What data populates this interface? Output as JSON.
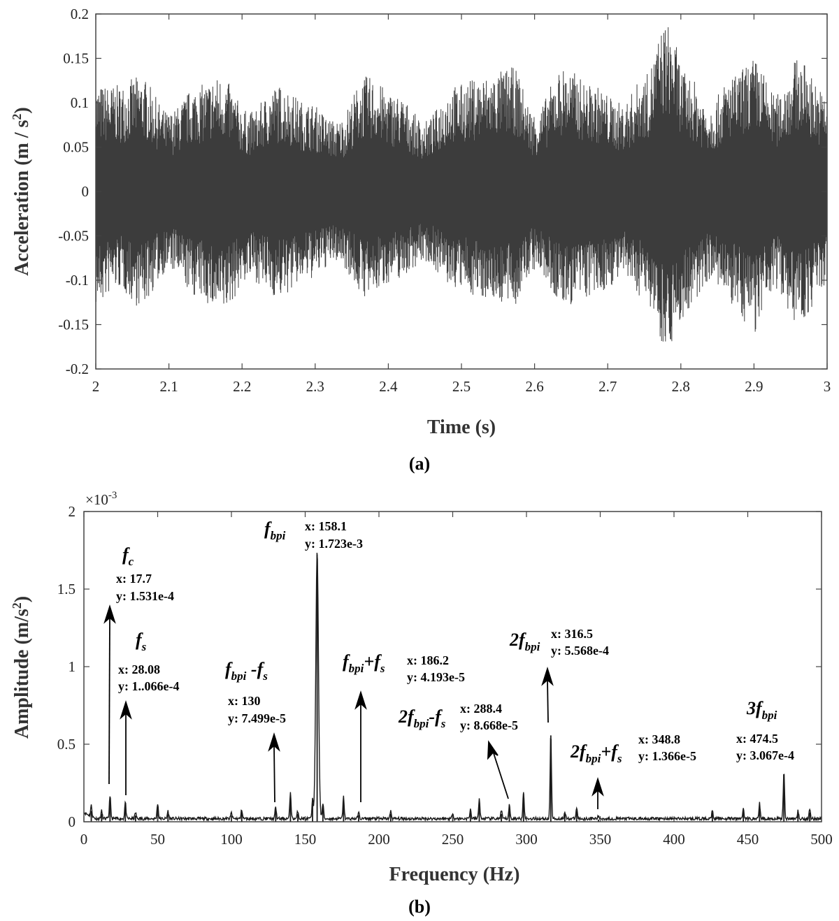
{
  "chart_data": [
    {
      "type": "line",
      "panel_label": "(a)",
      "xlabel": "Time (s)",
      "ylabel": {
        "main": "Acceleration (m / s",
        "sup": "2",
        "tail": ")"
      },
      "xlim": [
        2,
        3
      ],
      "ylim": [
        -0.2,
        0.2
      ],
      "xticks": [
        "2",
        "2.1",
        "2.2",
        "2.3",
        "2.4",
        "2.5",
        "2.6",
        "2.7",
        "2.8",
        "2.9",
        "3"
      ],
      "yticks": [
        "-0.2",
        "-0.15",
        "-0.1",
        "-0.05",
        "0",
        "0.05",
        "0.1",
        "0.15",
        "0.2"
      ],
      "color": "#1a1a1a",
      "series": [
        {
          "envelope_peaks": {
            "t": [
              2.0,
              2.03,
              2.06,
              2.1,
              2.14,
              2.17,
              2.21,
              2.25,
              2.29,
              2.33,
              2.37,
              2.41,
              2.45,
              2.49,
              2.53,
              2.57,
              2.6,
              2.64,
              2.68,
              2.72,
              2.75,
              2.78,
              2.81,
              2.84,
              2.87,
              2.9,
              2.93,
              2.96,
              3.0
            ],
            "upper": [
              0.12,
              0.12,
              0.13,
              0.09,
              0.12,
              0.13,
              0.09,
              0.12,
              0.1,
              0.08,
              0.13,
              0.11,
              0.08,
              0.12,
              0.13,
              0.14,
              0.09,
              0.14,
              0.12,
              0.1,
              0.13,
              0.19,
              0.13,
              0.1,
              0.13,
              0.15,
              0.11,
              0.15,
              0.11
            ],
            "lower": [
              -0.13,
              -0.11,
              -0.13,
              -0.09,
              -0.12,
              -0.14,
              -0.1,
              -0.12,
              -0.1,
              -0.08,
              -0.12,
              -0.1,
              -0.08,
              -0.11,
              -0.12,
              -0.13,
              -0.09,
              -0.13,
              -0.12,
              -0.1,
              -0.12,
              -0.175,
              -0.14,
              -0.1,
              -0.13,
              -0.16,
              -0.11,
              -0.15,
              -0.11
            ]
          }
        }
      ]
    },
    {
      "type": "line",
      "panel_label": "(b)",
      "xlabel": "Frequency (Hz)",
      "ylabel": {
        "main": "Amplitude (m/s",
        "sup": "2",
        "tail": ")"
      },
      "xlim": [
        0,
        500
      ],
      "ylim": [
        0,
        2
      ],
      "multiplier": {
        "base": "×10",
        "exp": "-3"
      },
      "xticks": [
        "0",
        "50",
        "100",
        "150",
        "200",
        "250",
        "300",
        "350",
        "400",
        "450",
        "500"
      ],
      "yticks": [
        "0",
        "0.5",
        "1",
        "1.5",
        "2"
      ],
      "color": "#1a1a1a",
      "series": [
        {
          "peaks": [
            {
              "x": 5,
              "y": 0.07
            },
            {
              "x": 12,
              "y": 0.05
            },
            {
              "x": 17.7,
              "y": 0.153
            },
            {
              "x": 28.08,
              "y": 0.107
            },
            {
              "x": 35,
              "y": 0.04
            },
            {
              "x": 50,
              "y": 0.1
            },
            {
              "x": 57,
              "y": 0.05
            },
            {
              "x": 100,
              "y": 0.04
            },
            {
              "x": 107,
              "y": 0.06
            },
            {
              "x": 130,
              "y": 0.075
            },
            {
              "x": 140,
              "y": 0.17
            },
            {
              "x": 145,
              "y": 0.05
            },
            {
              "x": 155,
              "y": 0.12
            },
            {
              "x": 158.1,
              "y": 1.723
            },
            {
              "x": 162,
              "y": 0.1
            },
            {
              "x": 176,
              "y": 0.14
            },
            {
              "x": 186.2,
              "y": 0.042
            },
            {
              "x": 208,
              "y": 0.05
            },
            {
              "x": 250,
              "y": 0.04
            },
            {
              "x": 262,
              "y": 0.06
            },
            {
              "x": 268,
              "y": 0.13
            },
            {
              "x": 283,
              "y": 0.05
            },
            {
              "x": 288.4,
              "y": 0.087
            },
            {
              "x": 298,
              "y": 0.18
            },
            {
              "x": 316.5,
              "y": 0.557
            },
            {
              "x": 326,
              "y": 0.05
            },
            {
              "x": 334,
              "y": 0.07
            },
            {
              "x": 348.8,
              "y": 0.014
            },
            {
              "x": 426,
              "y": 0.06
            },
            {
              "x": 447,
              "y": 0.07
            },
            {
              "x": 458,
              "y": 0.1
            },
            {
              "x": 474.5,
              "y": 0.307
            },
            {
              "x": 484,
              "y": 0.05
            },
            {
              "x": 492,
              "y": 0.06
            }
          ]
        }
      ],
      "annotations": [
        {
          "id": "fc",
          "sym": "f",
          "sub": "c",
          "pre": "",
          "post": "",
          "x_text": "x: 17.7",
          "y_text": "y: 1.531e-4"
        },
        {
          "id": "fs",
          "sym": "f",
          "sub": "s",
          "pre": "",
          "post": "",
          "x_text": "x: 28.08",
          "y_text": "y: 1..066e-4"
        },
        {
          "id": "fbpi",
          "sym": "f",
          "sub": "bpi",
          "pre": "",
          "post": "",
          "x_text": "x: 158.1",
          "y_text": "y: 1.723e-3"
        },
        {
          "id": "fbpi-fs",
          "sym": "f",
          "sub": "bpi",
          "pre": "",
          "post": " -f",
          "post_sub": "s",
          "x_text": "x: 130",
          "y_text": "y: 7.499e-5"
        },
        {
          "id": "fbpi+fs",
          "sym": "f",
          "sub": "bpi",
          "pre": "",
          "post": "+f",
          "post_sub": "s",
          "x_text": "x: 186.2",
          "y_text": "y: 4.193e-5"
        },
        {
          "id": "2fbpi-fs",
          "sym": "f",
          "sub": "bpi",
          "pre": "2",
          "post": "-f",
          "post_sub": "s",
          "x_text": "x: 288.4",
          "y_text": "y: 8.668e-5"
        },
        {
          "id": "2fbpi",
          "sym": "f",
          "sub": "bpi",
          "pre": "2",
          "post": "",
          "x_text": "x: 316.5",
          "y_text": "y: 5.568e-4"
        },
        {
          "id": "2fbpi+fs",
          "sym": "f",
          "sub": "bpi",
          "pre": "2",
          "post": "+f",
          "post_sub": "s",
          "x_text": "x: 348.8",
          "y_text": "y: 1.366e-5"
        },
        {
          "id": "3fbpi",
          "sym": "f",
          "sub": "bpi",
          "pre": "3",
          "post": "",
          "x_text": "x: 474.5",
          "y_text": "y: 3.067e-4"
        }
      ]
    }
  ]
}
